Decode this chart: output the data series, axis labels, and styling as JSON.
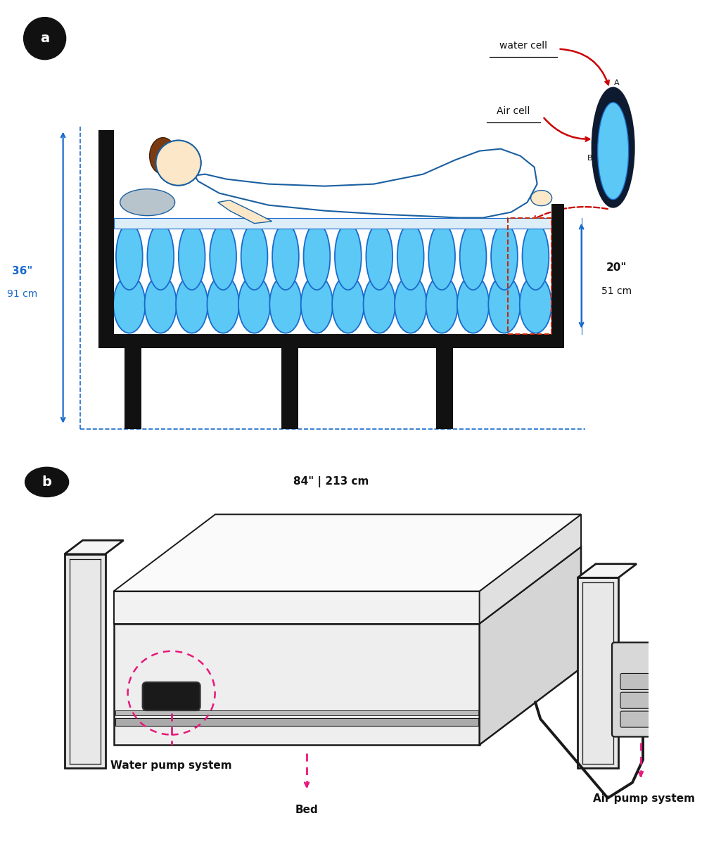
{
  "bg_color": "#ffffff",
  "panel_a_label": "a",
  "panel_b_label": "b",
  "label_bg": "#111111",
  "label_text": "#ffffff",
  "blue_cell_fill": "#5bc8f5",
  "blue_cell_edge": "#1a6bcc",
  "dark_blue": "#1a5fa0",
  "bed_frame_color": "#111111",
  "dim_color": "#1a6bcc",
  "red_arrow_color": "#cc0000",
  "pink_arrow_color": "#e8187a",
  "dim_text_36a": "36\"",
  "dim_text_36b": "91 cm",
  "dim_text_20a": "20\"",
  "dim_text_20b": "51 cm",
  "dim_text_84": "84\" | 213 cm",
  "label_water_cell": "water cell",
  "label_air_cell": "Air cell",
  "label_A": "A",
  "label_B": "B",
  "label_water_pump": "Water pump system",
  "label_bed": "Bed",
  "label_air_pump": "Air pump system",
  "frame_edge": "#1a1a1a",
  "frame_light": "#f0f0f0",
  "frame_mid": "#d8d8d8",
  "frame_dark": "#c0c0c0"
}
